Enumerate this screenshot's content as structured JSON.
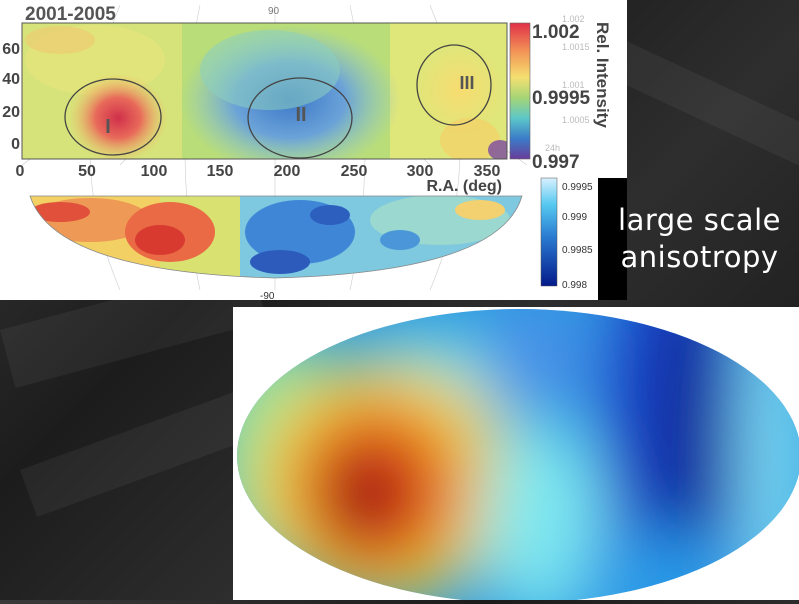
{
  "slide": {
    "heading_line1": "large scale",
    "heading_line2": "anisotropy",
    "colors": {
      "background": "#262626",
      "panel": "#ffffff",
      "heading_text": "#ffffff"
    }
  },
  "upper_map": {
    "period": "2001-2005",
    "dec_ticks": [
      "60",
      "40",
      "20",
      "0"
    ],
    "ra_ticks": [
      "0",
      "50",
      "100",
      "150",
      "200",
      "250",
      "300",
      "350"
    ],
    "ra_axis_label": "R.A. (deg)",
    "colorbar_title": "Rel. Intensity",
    "colorbar_main_ticks": [
      "1.002",
      "0.9995",
      "0.997"
    ],
    "colorbar_faint_ticks": [
      "1.002",
      "1.0015",
      "1.001",
      "1.0005"
    ],
    "faint_label_24h": "24h",
    "regions": [
      "I",
      "II",
      "III"
    ]
  },
  "lower_map": {
    "top_label": "90",
    "bottom_label": "-90",
    "colorbar_ticks": [
      "0.9995",
      "0.999",
      "0.9985",
      "0.998"
    ]
  }
}
